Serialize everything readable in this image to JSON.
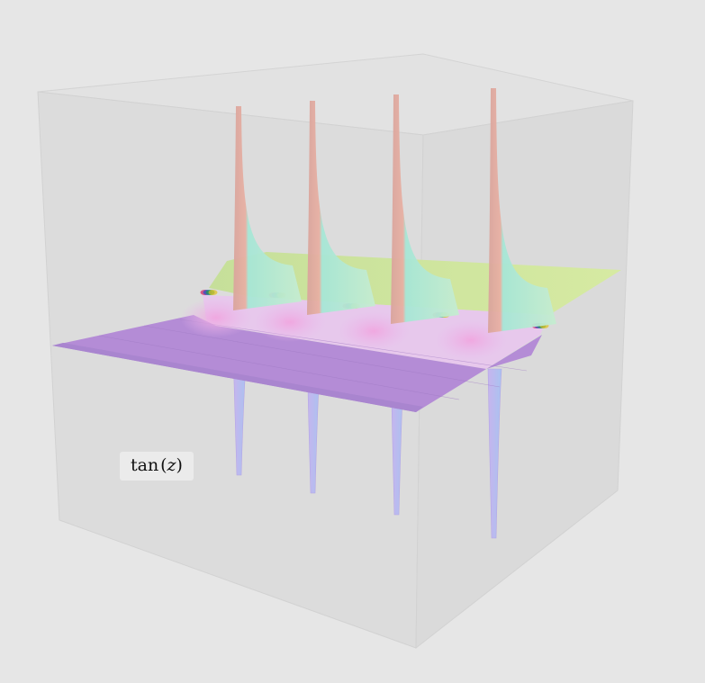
{
  "plot": {
    "function_label": "tan",
    "function_arg": "z",
    "colors": {
      "background": "#e6e6e6",
      "box_face": "#d9d9d9",
      "box_edge": "#cfcfcf",
      "lower_surface": "#b58ad6",
      "upper_surface": "#cfe6a0",
      "spike_top": "#9fe3cf",
      "spike_bottom": "#c9b6f0",
      "spike_seam": "#d9a6a0"
    }
  }
}
